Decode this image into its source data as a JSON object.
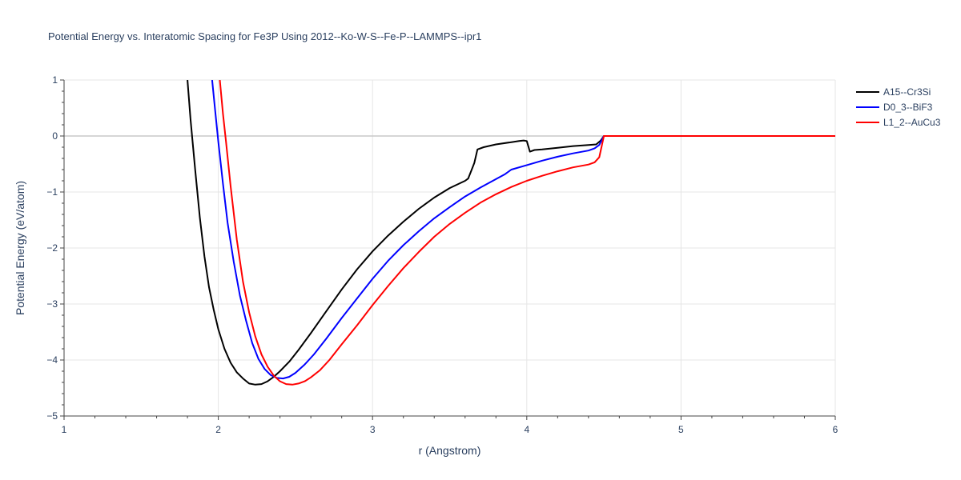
{
  "chart_data": {
    "type": "line",
    "title": "Potential Energy vs. Interatomic Spacing for Fe3P Using 2012--Ko-W-S--Fe-P--LAMMPS--ipr1",
    "xlabel": "r (Angstrom)",
    "ylabel": "Potential Energy (eV/atom)",
    "xlim": [
      1,
      6
    ],
    "ylim": [
      -5,
      1
    ],
    "xticks": [
      1,
      2,
      3,
      4,
      5,
      6
    ],
    "yticks": [
      1,
      0,
      -1,
      -2,
      -3,
      -4,
      -5
    ],
    "xtick_labels": [
      "1",
      "2",
      "3",
      "4",
      "5",
      "6"
    ],
    "ytick_labels": [
      "1",
      "0",
      "−1",
      "−2",
      "−3",
      "−4",
      "−5"
    ],
    "grid": true,
    "legend_position": "top-right",
    "series": [
      {
        "name": "A15--Cr3Si",
        "color": "#000000",
        "x": [
          1.8,
          1.82,
          1.85,
          1.88,
          1.91,
          1.94,
          1.97,
          2.0,
          2.04,
          2.08,
          2.12,
          2.16,
          2.2,
          2.24,
          2.28,
          2.32,
          2.36,
          2.4,
          2.46,
          2.52,
          2.6,
          2.7,
          2.8,
          2.9,
          3.0,
          3.1,
          3.2,
          3.3,
          3.4,
          3.5,
          3.6,
          3.62,
          3.64,
          3.66,
          3.68,
          3.72,
          3.8,
          3.9,
          3.95,
          3.98,
          4.0,
          4.02,
          4.05,
          4.1,
          4.2,
          4.3,
          4.4,
          4.45,
          4.48,
          4.5,
          4.6,
          4.8,
          5.0,
          5.5,
          6.0
        ],
        "y": [
          1.0,
          0.3,
          -0.6,
          -1.45,
          -2.15,
          -2.7,
          -3.1,
          -3.45,
          -3.8,
          -4.05,
          -4.22,
          -4.33,
          -4.42,
          -4.44,
          -4.43,
          -4.38,
          -4.3,
          -4.2,
          -4.03,
          -3.82,
          -3.52,
          -3.13,
          -2.74,
          -2.38,
          -2.06,
          -1.78,
          -1.53,
          -1.3,
          -1.1,
          -0.93,
          -0.8,
          -0.76,
          -0.62,
          -0.48,
          -0.24,
          -0.2,
          -0.15,
          -0.11,
          -0.09,
          -0.08,
          -0.09,
          -0.28,
          -0.25,
          -0.24,
          -0.21,
          -0.18,
          -0.16,
          -0.15,
          -0.08,
          0.0,
          0.0,
          0.0,
          0.0,
          0.0,
          0.0
        ]
      },
      {
        "name": "D0_3--BiF3",
        "color": "#0000ff",
        "x": [
          1.96,
          1.98,
          2.0,
          2.03,
          2.06,
          2.1,
          2.14,
          2.18,
          2.22,
          2.26,
          2.3,
          2.34,
          2.38,
          2.42,
          2.46,
          2.5,
          2.56,
          2.62,
          2.7,
          2.8,
          2.9,
          3.0,
          3.1,
          3.2,
          3.3,
          3.4,
          3.5,
          3.6,
          3.7,
          3.8,
          3.86,
          3.9,
          4.0,
          4.1,
          4.2,
          4.3,
          4.4,
          4.44,
          4.47,
          4.5,
          4.6,
          4.8,
          5.0,
          5.5,
          6.0
        ],
        "y": [
          1.0,
          0.45,
          -0.1,
          -0.85,
          -1.55,
          -2.25,
          -2.85,
          -3.3,
          -3.7,
          -3.98,
          -4.16,
          -4.27,
          -4.32,
          -4.33,
          -4.3,
          -4.23,
          -4.08,
          -3.9,
          -3.62,
          -3.25,
          -2.9,
          -2.55,
          -2.23,
          -1.95,
          -1.7,
          -1.47,
          -1.27,
          -1.08,
          -0.92,
          -0.77,
          -0.68,
          -0.6,
          -0.52,
          -0.44,
          -0.37,
          -0.31,
          -0.26,
          -0.22,
          -0.16,
          0.0,
          0.0,
          0.0,
          0.0,
          0.0,
          0.0
        ]
      },
      {
        "name": "L1_2--AuCu3",
        "color": "#ff0000",
        "x": [
          2.01,
          2.03,
          2.05,
          2.08,
          2.12,
          2.16,
          2.2,
          2.24,
          2.28,
          2.32,
          2.36,
          2.4,
          2.44,
          2.48,
          2.52,
          2.56,
          2.6,
          2.66,
          2.72,
          2.8,
          2.9,
          3.0,
          3.1,
          3.2,
          3.3,
          3.4,
          3.5,
          3.6,
          3.7,
          3.8,
          3.9,
          4.0,
          4.1,
          4.2,
          4.3,
          4.4,
          4.44,
          4.47,
          4.5,
          4.6,
          4.8,
          5.0,
          5.5,
          6.0
        ],
        "y": [
          1.0,
          0.4,
          -0.1,
          -0.9,
          -1.85,
          -2.6,
          -3.15,
          -3.58,
          -3.9,
          -4.12,
          -4.28,
          -4.38,
          -4.43,
          -4.44,
          -4.42,
          -4.38,
          -4.31,
          -4.18,
          -4.0,
          -3.72,
          -3.38,
          -3.02,
          -2.68,
          -2.36,
          -2.07,
          -1.8,
          -1.57,
          -1.37,
          -1.19,
          -1.04,
          -0.91,
          -0.8,
          -0.71,
          -0.63,
          -0.56,
          -0.51,
          -0.47,
          -0.38,
          0.0,
          0.0,
          0.0,
          0.0,
          0.0,
          0.0
        ]
      }
    ]
  }
}
